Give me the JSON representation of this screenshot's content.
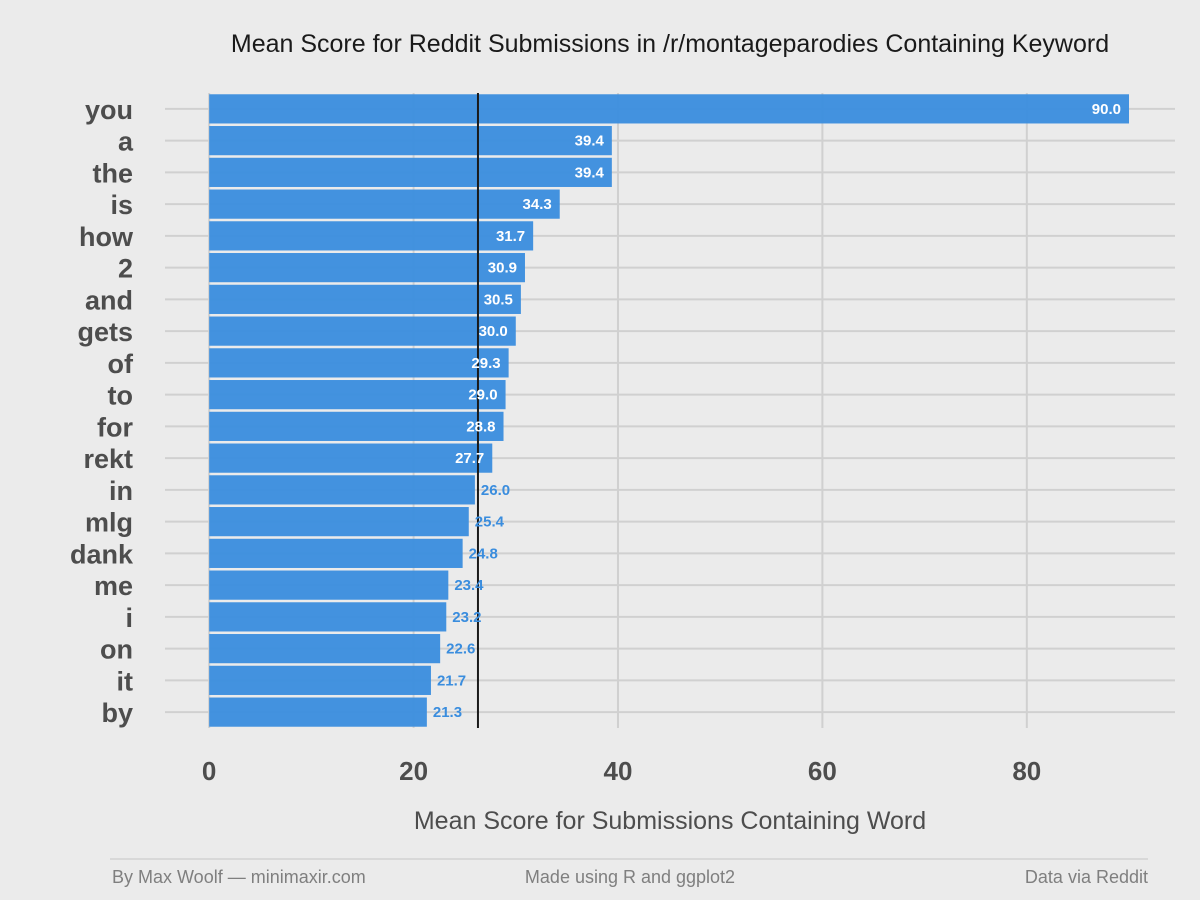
{
  "chart_data": {
    "type": "bar",
    "orientation": "horizontal",
    "title": "Mean Score for Reddit Submissions in /r/montageparodies Containing Keyword",
    "xlabel": "Mean Score for Submissions Containing Word",
    "ylabel": "",
    "categories": [
      "you",
      "a",
      "the",
      "is",
      "how",
      "2",
      "and",
      "gets",
      "of",
      "to",
      "for",
      "rekt",
      "in",
      "mlg",
      "dank",
      "me",
      "i",
      "on",
      "it",
      "by"
    ],
    "values": [
      90.0,
      39.4,
      39.4,
      34.3,
      31.7,
      30.9,
      30.5,
      30.0,
      29.3,
      29.0,
      28.8,
      27.7,
      26.0,
      25.4,
      24.8,
      23.4,
      23.2,
      22.6,
      21.7,
      21.3
    ],
    "value_labels": [
      "90.0",
      "39.4",
      "39.4",
      "34.3",
      "31.7",
      "30.9",
      "30.5",
      "30.0",
      "29.3",
      "29.0",
      "28.8",
      "27.7",
      "26.0",
      "25.4",
      "24.8",
      "23.4",
      "23.2",
      "22.6",
      "21.7",
      "21.3"
    ],
    "xticks": [
      0,
      20,
      40,
      60,
      80
    ],
    "xtick_labels": [
      "0",
      "20",
      "40",
      "60",
      "80"
    ],
    "xlim": [
      -5.3,
      94.5
    ],
    "reference_line_x": 26.3,
    "grid": true,
    "colors": {
      "bar": "#3a8dde",
      "background": "#ebebeb",
      "grid": "#d0d0d0",
      "reference_line": "#1a1a1a"
    }
  },
  "footer": {
    "left": "By Max Woolf — minimaxir.com",
    "center": "Made using R and ggplot2",
    "right": "Data via Reddit"
  }
}
